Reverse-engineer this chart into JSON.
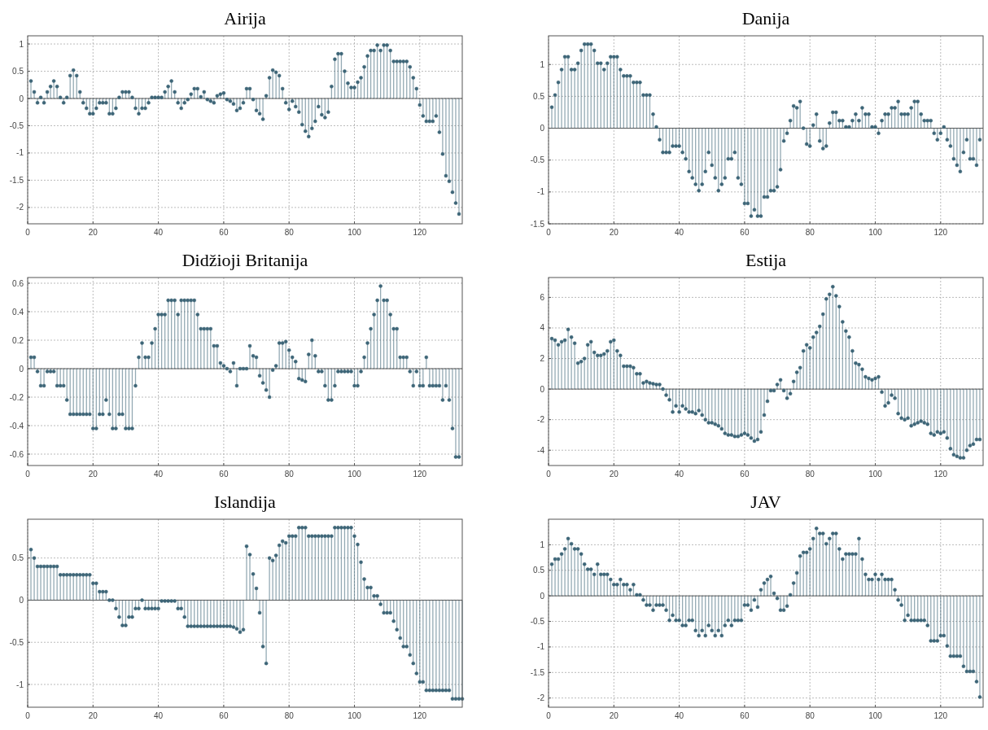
{
  "chart_data": [
    {
      "type": "lollipop",
      "title": "Airija",
      "xlim": [
        0,
        133
      ],
      "xticks": [
        0,
        20,
        40,
        60,
        80,
        100,
        120
      ],
      "ylim": [
        -2.3,
        1.15
      ],
      "yticks": [
        -2,
        -1.5,
        -1,
        -0.5,
        0,
        0.5,
        1
      ],
      "grid": true,
      "marker": "circle",
      "x": [
        1,
        2,
        3,
        4,
        5,
        6,
        7,
        8,
        9,
        10,
        11,
        12,
        13,
        14,
        15,
        16,
        17,
        18,
        19,
        20,
        21,
        22,
        23,
        24,
        25,
        26,
        27,
        28,
        29,
        30,
        31,
        32,
        33,
        34,
        35,
        36,
        37,
        38,
        39,
        40,
        41,
        42,
        43,
        44,
        45,
        46,
        47,
        48,
        49,
        50,
        51,
        52,
        53,
        54,
        55,
        56,
        57,
        58,
        59,
        60,
        61,
        62,
        63,
        64,
        65,
        66,
        67,
        68,
        69,
        70,
        71,
        72,
        73,
        74,
        75,
        76,
        77,
        78,
        79,
        80,
        81,
        82,
        83,
        84,
        85,
        86,
        87,
        88,
        89,
        90,
        91,
        92,
        93,
        94,
        95,
        96,
        97,
        98,
        99,
        100,
        101,
        102,
        103,
        104,
        105,
        106,
        107,
        108,
        109,
        110,
        111,
        112,
        113,
        114,
        115,
        116,
        117,
        118,
        119,
        120,
        121,
        122,
        123,
        124,
        125,
        126,
        127,
        128,
        129,
        130,
        131,
        132
      ],
      "series": [
        {
          "color": "#3d6577",
          "values": [
            0.32,
            0.12,
            -0.08,
            0.02,
            -0.08,
            0.12,
            0.22,
            0.32,
            0.22,
            0.02,
            -0.08,
            0.02,
            0.42,
            0.52,
            0.42,
            0.12,
            -0.08,
            -0.18,
            -0.28,
            -0.28,
            -0.18,
            -0.08,
            -0.08,
            -0.08,
            -0.28,
            -0.28,
            -0.18,
            0.02,
            0.12,
            0.12,
            0.12,
            0.02,
            -0.18,
            -0.28,
            -0.18,
            -0.18,
            -0.08,
            0.02,
            0.02,
            0.02,
            0.02,
            0.12,
            0.22,
            0.32,
            0.12,
            -0.08,
            -0.18,
            -0.08,
            -0.02,
            0.08,
            0.18,
            0.18,
            0.03,
            0.12,
            -0.02,
            -0.05,
            -0.08,
            0.05,
            0.08,
            0.1,
            -0.02,
            -0.05,
            -0.1,
            -0.22,
            -0.18,
            -0.08,
            0.18,
            0.18,
            -0.02,
            -0.22,
            -0.28,
            -0.38,
            0.05,
            0.38,
            0.52,
            0.48,
            0.42,
            0.18,
            -0.08,
            -0.2,
            -0.05,
            -0.15,
            -0.25,
            -0.48,
            -0.6,
            -0.7,
            -0.55,
            -0.42,
            -0.15,
            -0.3,
            -0.35,
            -0.25,
            0.22,
            0.72,
            0.82,
            0.82,
            0.5,
            0.28,
            0.2,
            0.2,
            0.3,
            0.38,
            0.58,
            0.78,
            0.88,
            0.88,
            0.98,
            0.88,
            0.98,
            0.98,
            0.88,
            0.68,
            0.68,
            0.68,
            0.68,
            0.68,
            0.58,
            0.38,
            0.18,
            -0.12,
            -0.32,
            -0.42,
            -0.42,
            -0.42,
            -0.32,
            -0.62,
            -1.02,
            -1.42,
            -1.52,
            -1.72,
            -1.92,
            -2.12
          ]
        }
      ]
    },
    {
      "type": "lollipop",
      "title": "Danija",
      "xlim": [
        0,
        133
      ],
      "xticks": [
        0,
        20,
        40,
        60,
        80,
        100,
        120
      ],
      "ylim": [
        -1.5,
        1.45
      ],
      "yticks": [
        -1.5,
        -1,
        -0.5,
        0,
        0.5,
        1
      ],
      "grid": true,
      "marker": "circle",
      "x": [
        1,
        2,
        3,
        4,
        5,
        6,
        7,
        8,
        9,
        10,
        11,
        12,
        13,
        14,
        15,
        16,
        17,
        18,
        19,
        20,
        21,
        22,
        23,
        24,
        25,
        26,
        27,
        28,
        29,
        30,
        31,
        32,
        33,
        34,
        35,
        36,
        37,
        38,
        39,
        40,
        41,
        42,
        43,
        44,
        45,
        46,
        47,
        48,
        49,
        50,
        51,
        52,
        53,
        54,
        55,
        56,
        57,
        58,
        59,
        60,
        61,
        62,
        63,
        64,
        65,
        66,
        67,
        68,
        69,
        70,
        71,
        72,
        73,
        74,
        75,
        76,
        77,
        78,
        79,
        80,
        81,
        82,
        83,
        84,
        85,
        86,
        87,
        88,
        89,
        90,
        91,
        92,
        93,
        94,
        95,
        96,
        97,
        98,
        99,
        100,
        101,
        102,
        103,
        104,
        105,
        106,
        107,
        108,
        109,
        110,
        111,
        112,
        113,
        114,
        115,
        116,
        117,
        118,
        119,
        120,
        121,
        122,
        123,
        124,
        125,
        126,
        127,
        128,
        129,
        130,
        131,
        132
      ],
      "series": [
        {
          "color": "#3d6577",
          "values": [
            0.33,
            0.52,
            0.72,
            0.92,
            1.12,
            1.12,
            0.92,
            0.92,
            1.02,
            1.22,
            1.32,
            1.32,
            1.32,
            1.22,
            1.02,
            1.02,
            0.92,
            1.02,
            1.12,
            1.12,
            1.12,
            0.92,
            0.82,
            0.82,
            0.82,
            0.72,
            0.72,
            0.72,
            0.52,
            0.52,
            0.52,
            0.22,
            0.02,
            -0.18,
            -0.38,
            -0.38,
            -0.38,
            -0.28,
            -0.28,
            -0.28,
            -0.38,
            -0.48,
            -0.68,
            -0.78,
            -0.88,
            -0.98,
            -0.88,
            -0.68,
            -0.38,
            -0.58,
            -0.78,
            -0.98,
            -0.88,
            -0.78,
            -0.48,
            -0.48,
            -0.38,
            -0.78,
            -0.88,
            -1.18,
            -1.18,
            -1.38,
            -1.28,
            -1.38,
            -1.38,
            -1.08,
            -1.08,
            -0.98,
            -0.98,
            -0.92,
            -0.65,
            -0.2,
            -0.08,
            0.12,
            0.35,
            0.32,
            0.42,
            0,
            -0.25,
            -0.28,
            0.05,
            0.22,
            -0.2,
            -0.32,
            -0.28,
            0.08,
            0.25,
            0.25,
            0.12,
            0.12,
            0.02,
            0.02,
            0.12,
            0.22,
            0.12,
            0.32,
            0.22,
            0.22,
            0.02,
            0.02,
            -0.08,
            0.12,
            0.22,
            0.22,
            0.32,
            0.32,
            0.42,
            0.22,
            0.22,
            0.22,
            0.32,
            0.42,
            0.42,
            0.22,
            0.12,
            0.12,
            0.12,
            -0.08,
            -0.18,
            -0.08,
            0.02,
            -0.18,
            -0.28,
            -0.48,
            -0.58,
            -0.68,
            -0.38,
            -0.18,
            -0.48,
            -0.48,
            -0.58,
            -0.18
          ]
        }
      ]
    },
    {
      "type": "lollipop",
      "title": "Didžioji Britanija",
      "xlim": [
        0,
        133
      ],
      "xticks": [
        0,
        20,
        40,
        60,
        80,
        100,
        120
      ],
      "ylim": [
        -0.68,
        0.64
      ],
      "yticks": [
        -0.6,
        -0.4,
        -0.2,
        0,
        0.2,
        0.4,
        0.6
      ],
      "grid": true,
      "marker": "circle",
      "x": [
        1,
        2,
        3,
        4,
        5,
        6,
        7,
        8,
        9,
        10,
        11,
        12,
        13,
        14,
        15,
        16,
        17,
        18,
        19,
        20,
        21,
        22,
        23,
        24,
        25,
        26,
        27,
        28,
        29,
        30,
        31,
        32,
        33,
        34,
        35,
        36,
        37,
        38,
        39,
        40,
        41,
        42,
        43,
        44,
        45,
        46,
        47,
        48,
        49,
        50,
        51,
        52,
        53,
        54,
        55,
        56,
        57,
        58,
        59,
        60,
        61,
        62,
        63,
        64,
        65,
        66,
        67,
        68,
        69,
        70,
        71,
        72,
        73,
        74,
        75,
        76,
        77,
        78,
        79,
        80,
        81,
        82,
        83,
        84,
        85,
        86,
        87,
        88,
        89,
        90,
        91,
        92,
        93,
        94,
        95,
        96,
        97,
        98,
        99,
        100,
        101,
        102,
        103,
        104,
        105,
        106,
        107,
        108,
        109,
        110,
        111,
        112,
        113,
        114,
        115,
        116,
        117,
        118,
        119,
        120,
        121,
        122,
        123,
        124,
        125,
        126,
        127,
        128,
        129,
        130,
        131,
        132
      ],
      "series": [
        {
          "color": "#3d6577",
          "values": [
            0.08,
            0.08,
            -0.02,
            -0.12,
            -0.12,
            -0.02,
            -0.02,
            -0.02,
            -0.12,
            -0.12,
            -0.12,
            -0.22,
            -0.32,
            -0.32,
            -0.32,
            -0.32,
            -0.32,
            -0.32,
            -0.32,
            -0.42,
            -0.42,
            -0.32,
            -0.32,
            -0.22,
            -0.32,
            -0.42,
            -0.42,
            -0.32,
            -0.32,
            -0.42,
            -0.42,
            -0.42,
            -0.12,
            0.08,
            0.18,
            0.08,
            0.08,
            0.18,
            0.28,
            0.38,
            0.38,
            0.38,
            0.48,
            0.48,
            0.48,
            0.38,
            0.48,
            0.48,
            0.48,
            0.48,
            0.48,
            0.38,
            0.28,
            0.28,
            0.28,
            0.28,
            0.16,
            0.16,
            0.04,
            0.02,
            0,
            -0.02,
            0.04,
            -0.12,
            0,
            0,
            0,
            0.16,
            0.09,
            0.08,
            -0.05,
            -0.1,
            -0.15,
            -0.2,
            -0.01,
            0.02,
            0.18,
            0.18,
            0.19,
            0.13,
            0.08,
            0.05,
            -0.07,
            -0.08,
            -0.09,
            0.1,
            0.2,
            0.09,
            -0.02,
            -0.02,
            -0.12,
            -0.22,
            -0.22,
            -0.12,
            -0.02,
            -0.02,
            -0.02,
            -0.02,
            -0.02,
            -0.12,
            -0.12,
            -0.02,
            0.08,
            0.18,
            0.28,
            0.38,
            0.48,
            0.58,
            0.48,
            0.48,
            0.38,
            0.28,
            0.28,
            0.08,
            0.08,
            0.08,
            -0.02,
            -0.12,
            -0.02,
            -0.12,
            -0.12,
            0.08,
            -0.12,
            -0.12,
            -0.12,
            -0.12,
            -0.22,
            -0.12,
            -0.22,
            -0.42,
            -0.62,
            -0.62
          ]
        }
      ]
    },
    {
      "type": "lollipop",
      "title": "Estija",
      "xlim": [
        0,
        133
      ],
      "xticks": [
        0,
        20,
        40,
        60,
        80,
        100,
        120
      ],
      "ylim": [
        -5,
        7.3
      ],
      "yticks": [
        -4,
        -2,
        0,
        2,
        4,
        6
      ],
      "grid": true,
      "marker": "circle",
      "x": [
        1,
        2,
        3,
        4,
        5,
        6,
        7,
        8,
        9,
        10,
        11,
        12,
        13,
        14,
        15,
        16,
        17,
        18,
        19,
        20,
        21,
        22,
        23,
        24,
        25,
        26,
        27,
        28,
        29,
        30,
        31,
        32,
        33,
        34,
        35,
        36,
        37,
        38,
        39,
        40,
        41,
        42,
        43,
        44,
        45,
        46,
        47,
        48,
        49,
        50,
        51,
        52,
        53,
        54,
        55,
        56,
        57,
        58,
        59,
        60,
        61,
        62,
        63,
        64,
        65,
        66,
        67,
        68,
        69,
        70,
        71,
        72,
        73,
        74,
        75,
        76,
        77,
        78,
        79,
        80,
        81,
        82,
        83,
        84,
        85,
        86,
        87,
        88,
        89,
        90,
        91,
        92,
        93,
        94,
        95,
        96,
        97,
        98,
        99,
        100,
        101,
        102,
        103,
        104,
        105,
        106,
        107,
        108,
        109,
        110,
        111,
        112,
        113,
        114,
        115,
        116,
        117,
        118,
        119,
        120,
        121,
        122,
        123,
        124,
        125,
        126,
        127,
        128,
        129,
        130,
        131,
        132
      ],
      "series": [
        {
          "color": "#3d6577",
          "values": [
            3.3,
            3.2,
            2.9,
            3.1,
            3.2,
            3.9,
            3.4,
            3.0,
            1.7,
            1.8,
            2.0,
            2.9,
            3.1,
            2.4,
            2.2,
            2.2,
            2.3,
            2.5,
            3.1,
            3.2,
            2.5,
            2.2,
            1.5,
            1.5,
            1.5,
            1.4,
            1.0,
            1.0,
            0.4,
            0.5,
            0.4,
            0.35,
            0.3,
            0.3,
            0,
            -0.4,
            -0.7,
            -1.5,
            -1.1,
            -1.5,
            -1.1,
            -1.3,
            -1.5,
            -1.5,
            -1.6,
            -1.4,
            -1.7,
            -2.0,
            -2.2,
            -2.2,
            -2.3,
            -2.4,
            -2.6,
            -2.9,
            -3.0,
            -3.0,
            -3.1,
            -3.1,
            -3.0,
            -2.9,
            -3.0,
            -3.2,
            -3.4,
            -3.3,
            -2.8,
            -1.7,
            -0.8,
            -0.1,
            -0.1,
            0.3,
            0.6,
            -0.1,
            -0.6,
            -0.3,
            0.5,
            1.1,
            1.4,
            2.5,
            2.9,
            2.7,
            3.4,
            3.7,
            4.1,
            4.9,
            5.9,
            6.2,
            6.7,
            6.1,
            5.4,
            4.4,
            3.8,
            3.4,
            2.5,
            1.7,
            1.6,
            1.3,
            0.8,
            0.7,
            0.6,
            0.7,
            0.8,
            -0.2,
            -1.1,
            -0.9,
            -0.4,
            -0.6,
            -1.6,
            -1.9,
            -2.0,
            -1.9,
            -2.4,
            -2.3,
            -2.2,
            -2.1,
            -2.2,
            -2.3,
            -2.9,
            -3.0,
            -2.8,
            -2.9,
            -2.8,
            -3.2,
            -3.9,
            -4.3,
            -4.4,
            -4.5,
            -4.5,
            -4.0,
            -3.7,
            -3.6,
            -3.3,
            -3.3
          ]
        }
      ]
    },
    {
      "type": "lollipop",
      "title": "Islandija",
      "xlim": [
        0,
        133
      ],
      "xticks": [
        0,
        20,
        40,
        60,
        80,
        100,
        120
      ],
      "ylim": [
        -1.27,
        0.96
      ],
      "yticks": [
        -1,
        -0.5,
        0,
        0.5
      ],
      "grid": true,
      "marker": "circle",
      "x": [
        1,
        2,
        3,
        4,
        5,
        6,
        7,
        8,
        9,
        10,
        11,
        12,
        13,
        14,
        15,
        16,
        17,
        18,
        19,
        20,
        21,
        22,
        23,
        24,
        25,
        26,
        27,
        28,
        29,
        30,
        31,
        32,
        33,
        34,
        35,
        36,
        37,
        38,
        39,
        40,
        41,
        42,
        43,
        44,
        45,
        46,
        47,
        48,
        49,
        50,
        51,
        52,
        53,
        54,
        55,
        56,
        57,
        58,
        59,
        60,
        61,
        62,
        63,
        64,
        65,
        66,
        67,
        68,
        69,
        70,
        71,
        72,
        73,
        74,
        75,
        76,
        77,
        78,
        79,
        80,
        81,
        82,
        83,
        84,
        85,
        86,
        87,
        88,
        89,
        90,
        91,
        92,
        93,
        94,
        95,
        96,
        97,
        98,
        99,
        100,
        101,
        102,
        103,
        104,
        105,
        106,
        107,
        108,
        109,
        110,
        111,
        112,
        113,
        114,
        115,
        116,
        117,
        118,
        119,
        120,
        121,
        122,
        123,
        124,
        125,
        126,
        127,
        128,
        129,
        130,
        131,
        132,
        133
      ],
      "series": [
        {
          "color": "#3d6577",
          "values": [
            0.6,
            0.5,
            0.4,
            0.4,
            0.4,
            0.4,
            0.4,
            0.4,
            0.4,
            0.3,
            0.3,
            0.3,
            0.3,
            0.3,
            0.3,
            0.3,
            0.3,
            0.3,
            0.3,
            0.2,
            0.2,
            0.1,
            0.1,
            0.1,
            0,
            0,
            -0.1,
            -0.2,
            -0.3,
            -0.3,
            -0.2,
            -0.2,
            -0.1,
            -0.1,
            0,
            -0.1,
            -0.1,
            -0.1,
            -0.1,
            -0.1,
            -0.01,
            -0.01,
            -0.01,
            -0.01,
            -0.01,
            -0.1,
            -0.1,
            -0.2,
            -0.31,
            -0.31,
            -0.31,
            -0.31,
            -0.31,
            -0.31,
            -0.31,
            -0.31,
            -0.31,
            -0.31,
            -0.31,
            -0.31,
            -0.31,
            -0.31,
            -0.32,
            -0.34,
            -0.38,
            -0.35,
            0.64,
            0.54,
            0.31,
            0.14,
            -0.15,
            -0.55,
            -0.75,
            0.5,
            0.47,
            0.53,
            0.65,
            0.7,
            0.68,
            0.76,
            0.76,
            0.76,
            0.86,
            0.86,
            0.86,
            0.76,
            0.76,
            0.76,
            0.76,
            0.76,
            0.76,
            0.76,
            0.76,
            0.86,
            0.86,
            0.86,
            0.86,
            0.86,
            0.86,
            0.76,
            0.66,
            0.45,
            0.25,
            0.15,
            0.15,
            0.05,
            0.05,
            -0.05,
            -0.15,
            -0.15,
            -0.15,
            -0.25,
            -0.35,
            -0.45,
            -0.55,
            -0.55,
            -0.65,
            -0.75,
            -0.87,
            -0.97,
            -0.97,
            -1.07,
            -1.07,
            -1.07,
            -1.07,
            -1.07,
            -1.07,
            -1.07,
            -1.07,
            -1.17,
            -1.17,
            -1.17,
            -1.17
          ]
        }
      ]
    },
    {
      "type": "lollipop",
      "title": "JAV",
      "xlim": [
        0,
        133
      ],
      "xticks": [
        0,
        20,
        40,
        60,
        80,
        100,
        120
      ],
      "ylim": [
        -2.18,
        1.5
      ],
      "yticks": [
        -2,
        -1.5,
        -1,
        -0.5,
        0,
        0.5,
        1
      ],
      "grid": true,
      "marker": "circle",
      "x": [
        1,
        2,
        3,
        4,
        5,
        6,
        7,
        8,
        9,
        10,
        11,
        12,
        13,
        14,
        15,
        16,
        17,
        18,
        19,
        20,
        21,
        22,
        23,
        24,
        25,
        26,
        27,
        28,
        29,
        30,
        31,
        32,
        33,
        34,
        35,
        36,
        37,
        38,
        39,
        40,
        41,
        42,
        43,
        44,
        45,
        46,
        47,
        48,
        49,
        50,
        51,
        52,
        53,
        54,
        55,
        56,
        57,
        58,
        59,
        60,
        61,
        62,
        63,
        64,
        65,
        66,
        67,
        68,
        69,
        70,
        71,
        72,
        73,
        74,
        75,
        76,
        77,
        78,
        79,
        80,
        81,
        82,
        83,
        84,
        85,
        86,
        87,
        88,
        89,
        90,
        91,
        92,
        93,
        94,
        95,
        96,
        97,
        98,
        99,
        100,
        101,
        102,
        103,
        104,
        105,
        106,
        107,
        108,
        109,
        110,
        111,
        112,
        113,
        114,
        115,
        116,
        117,
        118,
        119,
        120,
        121,
        122,
        123,
        124,
        125,
        126,
        127,
        128,
        129,
        130,
        131,
        132
      ],
      "series": [
        {
          "color": "#3d6577",
          "values": [
            0.62,
            0.72,
            0.72,
            0.82,
            0.92,
            1.12,
            1.02,
            0.92,
            0.92,
            0.82,
            0.62,
            0.52,
            0.52,
            0.42,
            0.62,
            0.42,
            0.42,
            0.42,
            0.32,
            0.22,
            0.22,
            0.32,
            0.22,
            0.22,
            0.12,
            0.22,
            0.02,
            0.02,
            -0.08,
            -0.18,
            -0.18,
            -0.28,
            -0.18,
            -0.18,
            -0.18,
            -0.28,
            -0.48,
            -0.38,
            -0.48,
            -0.48,
            -0.58,
            -0.58,
            -0.48,
            -0.48,
            -0.68,
            -0.78,
            -0.68,
            -0.78,
            -0.58,
            -0.68,
            -0.78,
            -0.68,
            -0.78,
            -0.58,
            -0.48,
            -0.58,
            -0.48,
            -0.48,
            -0.48,
            -0.18,
            -0.18,
            -0.28,
            -0.08,
            -0.22,
            0.12,
            0.25,
            0.32,
            0.38,
            0.05,
            -0.05,
            -0.28,
            -0.28,
            -0.2,
            0.02,
            0.25,
            0.45,
            0.78,
            0.85,
            0.85,
            0.92,
            1.12,
            1.32,
            1.22,
            1.22,
            1.02,
            1.12,
            1.22,
            1.22,
            0.92,
            0.72,
            0.82,
            0.82,
            0.82,
            0.82,
            1.12,
            0.72,
            0.42,
            0.32,
            0.32,
            0.42,
            0.32,
            0.42,
            0.32,
            0.32,
            0.32,
            0.12,
            -0.08,
            -0.18,
            -0.48,
            -0.38,
            -0.48,
            -0.48,
            -0.48,
            -0.48,
            -0.48,
            -0.58,
            -0.88,
            -0.88,
            -0.88,
            -0.78,
            -0.78,
            -0.98,
            -1.18,
            -1.18,
            -1.18,
            -1.18,
            -1.38,
            -1.48,
            -1.48,
            -1.48,
            -1.68,
            -1.98
          ]
        }
      ]
    }
  ]
}
